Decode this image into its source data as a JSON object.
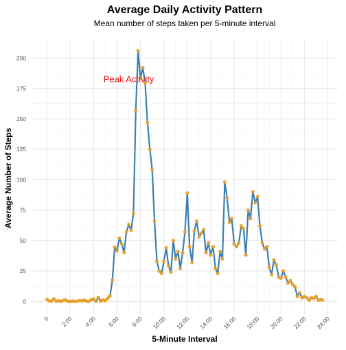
{
  "chart_data": {
    "type": "line",
    "title": "Average Daily Activity Pattern",
    "subtitle": "Mean number of steps taken per 5-minute interval",
    "xlabel": "5-Minute Interval",
    "ylabel": "Average Number of Steps",
    "xlim": [
      -130,
      2485
    ],
    "ylim": [
      -10,
      216
    ],
    "x_ticks": [
      0,
      200,
      400,
      600,
      800,
      1000,
      1200,
      1400,
      1600,
      1800,
      2000,
      2200,
      2400
    ],
    "x_tick_labels": [
      "0",
      "2:00",
      "4:00",
      "6:00",
      "8:00",
      "10:00",
      "12:00",
      "14:00",
      "16:00",
      "18:00",
      "20:00",
      "22:00",
      "24:00"
    ],
    "y_ticks": [
      0,
      25,
      50,
      75,
      100,
      125,
      150,
      175,
      200
    ],
    "y_tick_labels": [
      "0",
      "25",
      "50",
      "75",
      "100",
      "125",
      "150",
      "175",
      "200"
    ],
    "grid": true,
    "line_color": "#3a7fb3",
    "point_color": "#f5a320",
    "annotation": {
      "text": "Peak Activity",
      "x": 700,
      "y": 183,
      "color": "#ee1111"
    },
    "series": [
      {
        "x": [
          0,
          20,
          40,
          60,
          80,
          100,
          120,
          140,
          160,
          180,
          200,
          220,
          240,
          260,
          280,
          300,
          320,
          340,
          360,
          380,
          400,
          420,
          440,
          460,
          480,
          500,
          520,
          540,
          560,
          580,
          600,
          620,
          640,
          660,
          680,
          700,
          720,
          740,
          760,
          780,
          800,
          820,
          840,
          860,
          880,
          900,
          920,
          940,
          960,
          980,
          1000,
          1020,
          1040,
          1060,
          1080,
          1100,
          1120,
          1140,
          1160,
          1180,
          1200,
          1220,
          1240,
          1260,
          1280,
          1300,
          1320,
          1340,
          1360,
          1380,
          1400,
          1420,
          1440,
          1460,
          1480,
          1500,
          1520,
          1540,
          1560,
          1580,
          1600,
          1620,
          1640,
          1660,
          1680,
          1700,
          1720,
          1740,
          1760,
          1780,
          1800,
          1820,
          1840,
          1860,
          1880,
          1900,
          1920,
          1940,
          1960,
          1980,
          2000,
          2020,
          2040,
          2060,
          2080,
          2100,
          2120,
          2140,
          2160,
          2180,
          2200,
          2220,
          2240,
          2260,
          2280,
          2300,
          2320,
          2340,
          2355
        ],
        "y": [
          1.7,
          0.3,
          0.2,
          2.1,
          0.1,
          0.5,
          0.0,
          0.7,
          1.3,
          0.0,
          0.0,
          0.2,
          0.0,
          0.1,
          0.6,
          0.3,
          1.0,
          0.1,
          0.0,
          1.4,
          2.0,
          0.0,
          3.2,
          0.3,
          1.2,
          0.5,
          2.5,
          4.5,
          17.6,
          44.5,
          41.5,
          52.0,
          47.2,
          40.1,
          57.0,
          63.2,
          58.4,
          72.3,
          157.0,
          205.9,
          183.4,
          192.1,
          179.6,
          147.0,
          125.0,
          108.0,
          66.0,
          33.0,
          25.0,
          23.0,
          33.0,
          44.0,
          29.0,
          24.0,
          50.0,
          35.0,
          41.0,
          27.0,
          40.0,
          57.0,
          89.0,
          45.0,
          32.0,
          58.0,
          66.0,
          53.0,
          56.0,
          59.0,
          40.0,
          48.0,
          38.0,
          45.0,
          27.0,
          23.0,
          41.0,
          35.0,
          98.0,
          85.0,
          65.0,
          68.0,
          47.0,
          45.0,
          48.0,
          62.0,
          60.0,
          38.0,
          75.0,
          68.0,
          90.0,
          81.0,
          86.0,
          62.0,
          48.0,
          43.0,
          45.0,
          28.0,
          22.0,
          34.0,
          30.0,
          20.0,
          19.0,
          25.0,
          20.0,
          15.0,
          17.0,
          14.0,
          12.0,
          4.0,
          7.0,
          3.0,
          4.0,
          3.0,
          1.0,
          3.0,
          2.5,
          4.0,
          1.0,
          1.5,
          1.1
        ]
      }
    ]
  }
}
